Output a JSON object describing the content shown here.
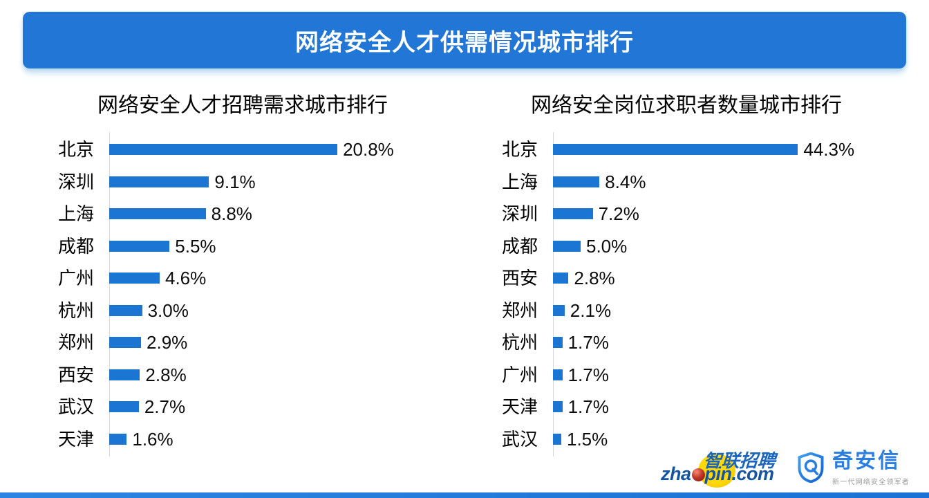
{
  "banner": {
    "title": "网络安全人才供需情况城市排行"
  },
  "chart_data": [
    {
      "type": "bar",
      "orientation": "horizontal",
      "title": "网络安全人才招聘需求城市排行",
      "categories": [
        "北京",
        "深圳",
        "上海",
        "成都",
        "广州",
        "杭州",
        "郑州",
        "西安",
        "武汉",
        "天津"
      ],
      "values": [
        20.8,
        9.1,
        8.8,
        5.5,
        4.6,
        3.0,
        2.9,
        2.8,
        2.7,
        1.6
      ],
      "value_labels": [
        "20.8%",
        "9.1%",
        "8.8%",
        "5.5%",
        "4.6%",
        "3.0%",
        "2.9%",
        "2.8%",
        "2.7%",
        "1.6%"
      ],
      "unit": "%",
      "xlim": [
        0,
        30.5
      ],
      "bar_color": "#1b75d2",
      "grid": false,
      "legend": false
    },
    {
      "type": "bar",
      "orientation": "horizontal",
      "title": "网络安全岗位求职者数量城市排行",
      "categories": [
        "北京",
        "上海",
        "深圳",
        "成都",
        "西安",
        "郑州",
        "杭州",
        "广州",
        "天津",
        "武汉"
      ],
      "values": [
        44.3,
        8.4,
        7.2,
        5.0,
        2.8,
        2.1,
        1.7,
        1.7,
        1.7,
        1.5
      ],
      "value_labels": [
        "44.3%",
        "8.4%",
        "7.2%",
        "5.0%",
        "2.8%",
        "2.1%",
        "1.7%",
        "1.7%",
        "1.7%",
        "1.5%"
      ],
      "unit": "%",
      "xlim": [
        0,
        60.5
      ],
      "bar_color": "#1b75d2",
      "grid": false,
      "legend": false
    }
  ],
  "footer": {
    "zhaopin": {
      "brand_cn": "智联招聘",
      "brand_prefix": "zha",
      "brand_suffix": "pin.com"
    },
    "qianxin": {
      "name": "奇安信",
      "tagline": "新一代网络安全领军者"
    }
  },
  "colors": {
    "banner_blue": "#2176d6",
    "bar_blue": "#1b75d2",
    "axis_gray": "#d8d8d8",
    "strip_blue": "#1d78d8",
    "qianxin_blue": "#2a7de1",
    "tagline_gray": "#9a9a9a",
    "zhaopin_text_blue": "#15549e",
    "zhaopin_cn_blue": "#1b66bb",
    "zhaopin_yellow": "#fcd000",
    "zhaopin_red": "#b0291a"
  }
}
